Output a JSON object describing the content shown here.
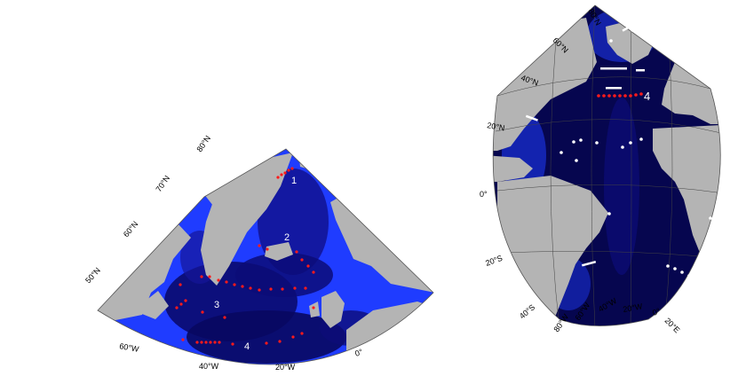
{
  "left_map": {
    "lat_labels": [
      "80°N",
      "70°N",
      "60°N",
      "50°N"
    ],
    "lon_labels": [
      "60°W",
      "40°W",
      "20°W",
      "0°"
    ],
    "section_numbers": [
      "1",
      "2",
      "3",
      "4"
    ],
    "colors": {
      "land": "#b4b4b4",
      "ocean_deep": "#0a0a6e",
      "ocean_shelf": "#1f3cff",
      "station": "#ff1a1a"
    }
  },
  "right_map": {
    "lat_labels": [
      "80°N",
      "60°N",
      "40°N",
      "20°N",
      "0°",
      "20°S",
      "40°S"
    ],
    "lon_labels": [
      "80°W",
      "60°W",
      "40°W",
      "20°W",
      "0°",
      "20°E"
    ],
    "section_numbers": [
      "4"
    ],
    "colors": {
      "land": "#b4b4b4",
      "ocean_deep": "#06064f",
      "ocean_shelf": "#1f3cff",
      "station_red": "#ff1a1a",
      "station_white": "#ffffff"
    }
  }
}
